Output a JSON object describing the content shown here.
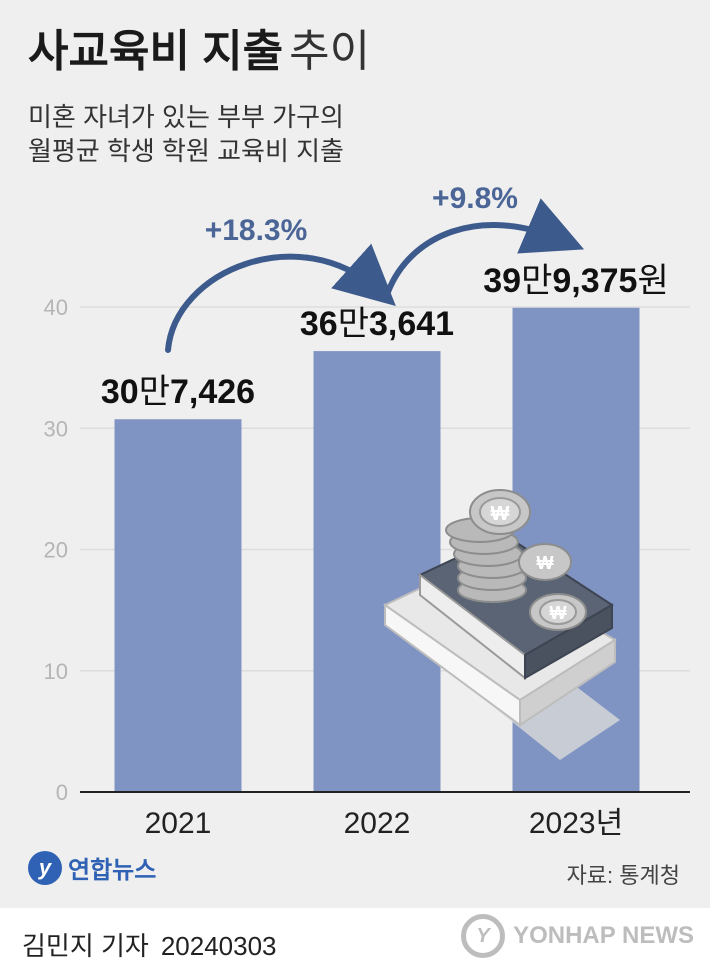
{
  "title": {
    "main": "사교육비 지출",
    "suffix": "추이"
  },
  "subtitle": {
    "line1": "미혼 자녀가 있는 부부 가구의",
    "line2": "월평균 학생 학원 교육비 지출"
  },
  "chart_data": {
    "type": "bar",
    "categories": [
      "2021",
      "2022",
      "2023년"
    ],
    "values": [
      30.7426,
      36.3641,
      39.9375
    ],
    "value_labels": [
      {
        "num": "30",
        "man": "만",
        "rest": "7,426",
        "unit": ""
      },
      {
        "num": "36",
        "man": "만",
        "rest": "3,641",
        "unit": ""
      },
      {
        "num": "39",
        "man": "만",
        "rest": "9,375",
        "unit": "원"
      }
    ],
    "growth": [
      "+18.3%",
      "+9.8%"
    ],
    "yticks": [
      "0",
      "10",
      "20",
      "30",
      "40"
    ],
    "ylim": [
      0,
      40
    ],
    "grid": true,
    "colors": {
      "bar": "#8094c3",
      "arrow": "#3d5a8c",
      "grid": "#dddddd"
    }
  },
  "footer": {
    "logo_mark": "y",
    "logo_name": "연합뉴스",
    "source": "자료: 통계청",
    "byline": "김민지 기자",
    "date": "20240303",
    "agency_mark": "Y",
    "agency": "YONHAP NEWS"
  }
}
